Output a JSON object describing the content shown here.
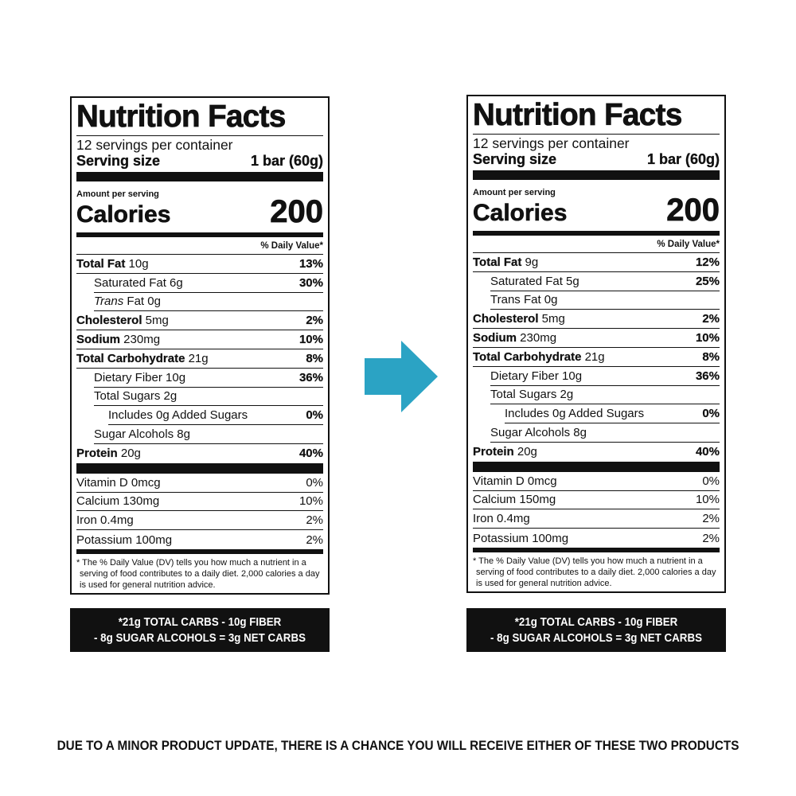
{
  "labels": [
    {
      "title": "Nutrition Facts",
      "servings": "12 servings per container",
      "serving_size_label": "Serving size",
      "serving_size_value": "1 bar (60g)",
      "amount_per_serving": "Amount per serving",
      "calories_label": "Calories",
      "calories_value": "200",
      "dv_header": "% Daily Value*",
      "nutrients": [
        {
          "bold": "Total Fat",
          "text": " 10g",
          "pct": "13%"
        },
        {
          "bold": "",
          "text": "Saturated Fat 6g",
          "pct": "30%"
        },
        {
          "bold": "",
          "italic": "Trans",
          "text": " Fat 0g",
          "pct": ""
        },
        {
          "bold": "Cholesterol",
          "text": " 5mg",
          "pct": "2%"
        },
        {
          "bold": "Sodium",
          "text": " 230mg",
          "pct": "10%"
        },
        {
          "bold": "Total Carbohydrate",
          "text": " 21g",
          "pct": "8%"
        },
        {
          "bold": "",
          "text": "Dietary Fiber 10g",
          "pct": "36%"
        },
        {
          "bold": "",
          "text": "Total Sugars 2g",
          "pct": ""
        },
        {
          "bold": "",
          "text": "Includes 0g Added Sugars",
          "pct": "0%"
        },
        {
          "bold": "",
          "text": "Sugar Alcohols 8g",
          "pct": ""
        },
        {
          "bold": "Protein",
          "text": " 20g",
          "pct": "40%"
        }
      ],
      "vitamins": [
        {
          "text": "Vitamin D 0mcg",
          "pct": "0%"
        },
        {
          "text": "Calcium 130mg",
          "pct": "10%"
        },
        {
          "text": "Iron 0.4mg",
          "pct": "2%"
        },
        {
          "text": "Potassium 100mg",
          "pct": "2%"
        }
      ],
      "footnote": "* The % Daily Value (DV) tells you how much a nutrient in a serving of food contributes to a daily diet. 2,000 calories a day is used for general nutrition advice.",
      "net_carbs_line1": "*21g TOTAL CARBS - 10g FIBER",
      "net_carbs_line2": "- 8g SUGAR ALCOHOLS = 3g NET CARBS"
    },
    {
      "title": "Nutrition Facts",
      "servings": "12 servings per container",
      "serving_size_label": "Serving size",
      "serving_size_value": "1 bar (60g)",
      "amount_per_serving": "Amount per serving",
      "calories_label": "Calories",
      "calories_value": "200",
      "dv_header": "% Daily Value*",
      "nutrients": [
        {
          "bold": "Total Fat",
          "text": " 9g",
          "pct": "12%"
        },
        {
          "bold": "",
          "text": "Saturated Fat 5g",
          "pct": "25%"
        },
        {
          "bold": "",
          "italic": "",
          "text": "Trans Fat 0g",
          "pct": ""
        },
        {
          "bold": "Cholesterol",
          "text": " 5mg",
          "pct": "2%"
        },
        {
          "bold": "Sodium",
          "text": " 230mg",
          "pct": "10%"
        },
        {
          "bold": "Total Carbohydrate",
          "text": " 21g",
          "pct": "8%"
        },
        {
          "bold": "",
          "text": "Dietary Fiber 10g",
          "pct": "36%"
        },
        {
          "bold": "",
          "text": "Total Sugars 2g",
          "pct": ""
        },
        {
          "bold": "",
          "text": "Includes 0g Added Sugars",
          "pct": "0%"
        },
        {
          "bold": "",
          "text": "Sugar Alcohols 8g",
          "pct": ""
        },
        {
          "bold": "Protein",
          "text": " 20g",
          "pct": "40%"
        }
      ],
      "vitamins": [
        {
          "text": "Vitamin D 0mcg",
          "pct": "0%"
        },
        {
          "text": "Calcium 150mg",
          "pct": "10%"
        },
        {
          "text": "Iron 0.4mg",
          "pct": "2%"
        },
        {
          "text": "Potassium 100mg",
          "pct": "2%"
        }
      ],
      "footnote": "* The % Daily Value (DV) tells you how much a nutrient in a serving of food contributes to a daily diet. 2,000 calories a day is used for general nutrition advice.",
      "net_carbs_line1": "*21g TOTAL CARBS - 10g FIBER",
      "net_carbs_line2": "- 8g SUGAR ALCOHOLS = 3g NET CARBS"
    }
  ],
  "arrow": {
    "icon": "arrow-right-icon",
    "color": "#2ba3c4"
  },
  "notice": "DUE TO A MINOR PRODUCT UPDATE, THERE IS A CHANCE YOU WILL RECEIVE EITHER OF THESE TWO PRODUCTS"
}
